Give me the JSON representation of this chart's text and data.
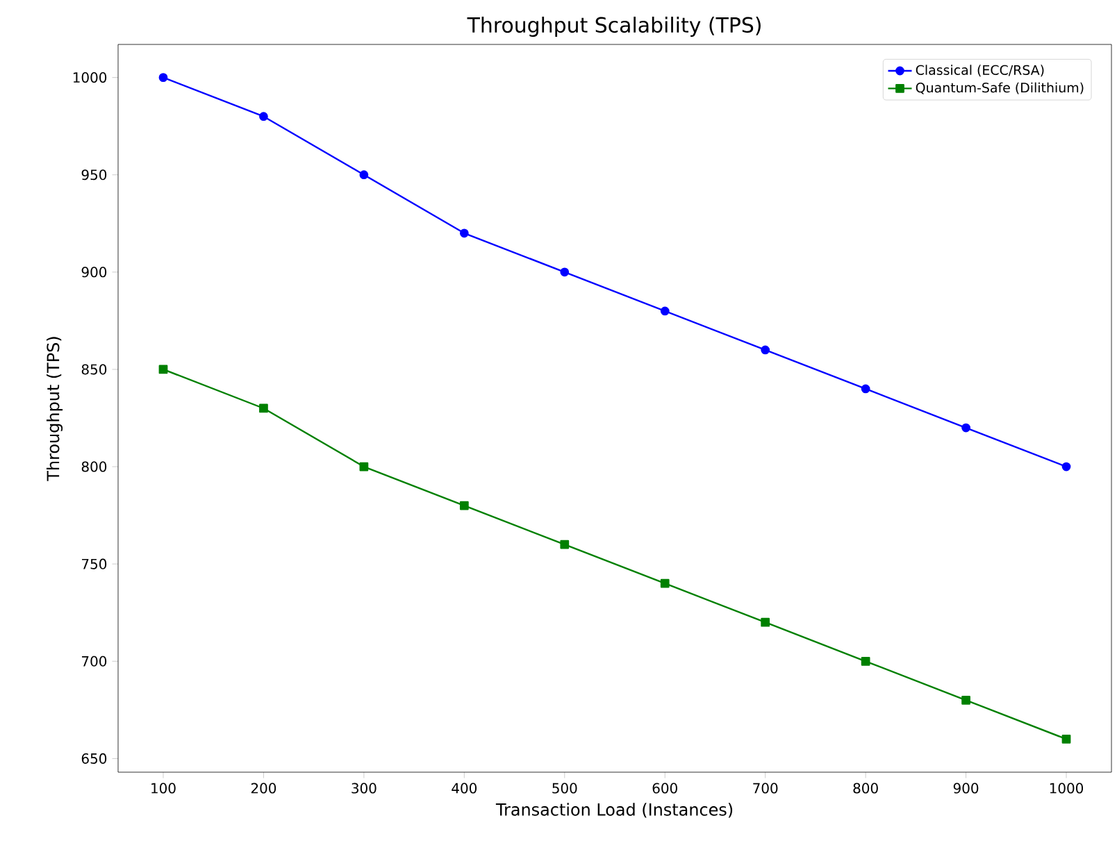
{
  "chart_data": {
    "type": "line",
    "title": "Throughput Scalability (TPS)",
    "xlabel": "Transaction Load (Instances)",
    "ylabel": "Throughput (TPS)",
    "x": [
      100,
      200,
      300,
      400,
      500,
      600,
      700,
      800,
      900,
      1000
    ],
    "series": [
      {
        "name": "Classical (ECC/RSA)",
        "color": "#0000ff",
        "marker": "circle",
        "values": [
          1000,
          980,
          950,
          920,
          900,
          880,
          860,
          840,
          820,
          800
        ]
      },
      {
        "name": "Quantum-Safe (Dilithium)",
        "color": "#008000",
        "marker": "square",
        "values": [
          850,
          830,
          800,
          780,
          760,
          740,
          720,
          700,
          680,
          660
        ]
      }
    ],
    "xlim": [
      55,
      1045
    ],
    "ylim": [
      643,
      1017
    ],
    "xticks": [
      100,
      200,
      300,
      400,
      500,
      600,
      700,
      800,
      900,
      1000
    ],
    "yticks": [
      650,
      700,
      750,
      800,
      850,
      900,
      950,
      1000
    ],
    "legend": "top right",
    "line_style": "solid"
  }
}
